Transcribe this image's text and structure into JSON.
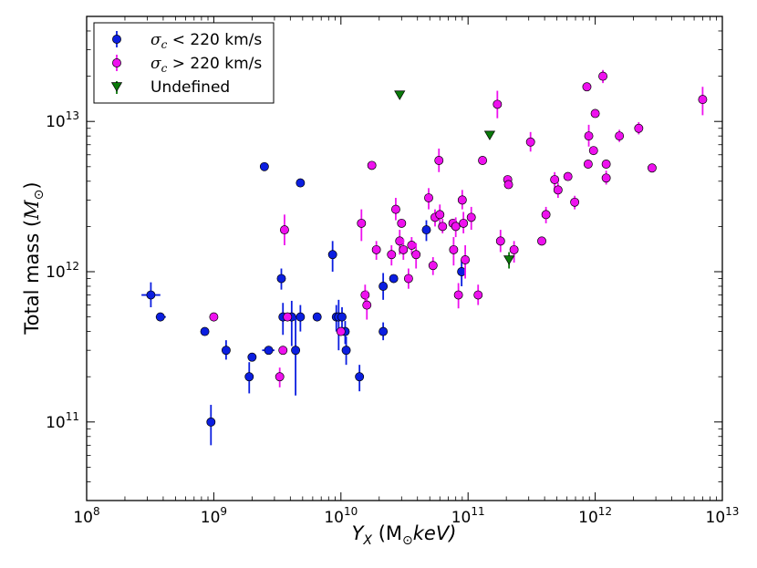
{
  "chart_data": {
    "type": "scatter",
    "title": "",
    "xlabel": {
      "main": "Y",
      "sub": "X",
      "rest": " (M",
      "sun": "⊙",
      "unit": "keV)"
    },
    "ylabel": {
      "main": "Total mass (",
      "sym": "M",
      "sun": "⊙",
      "close": ")"
    },
    "xscale": "log",
    "yscale": "log",
    "xlim": [
      100000000.0,
      10000000000000.0
    ],
    "ylim": [
      30000000000.0,
      50000000000000.0
    ],
    "xticks": [
      {
        "base": "10",
        "exp": "8",
        "value": 100000000.0
      },
      {
        "base": "10",
        "exp": "9",
        "value": 1000000000.0
      },
      {
        "base": "10",
        "exp": "10",
        "value": 10000000000.0
      },
      {
        "base": "10",
        "exp": "11",
        "value": 100000000000.0
      },
      {
        "base": "10",
        "exp": "12",
        "value": 1000000000000.0
      },
      {
        "base": "10",
        "exp": "13",
        "value": 10000000000000.0
      }
    ],
    "yticks": [
      {
        "base": "10",
        "exp": "11",
        "value": 100000000000.0
      },
      {
        "base": "10",
        "exp": "12",
        "value": 1000000000000.0
      },
      {
        "base": "10",
        "exp": "13",
        "value": 10000000000000.0
      }
    ],
    "grid": false,
    "legend_position": "top-left",
    "series": [
      {
        "name": "blue",
        "legend": {
          "sym": "σ",
          "sub": "c",
          "rest": " < 220 km/s"
        },
        "color": "#0b1ee0",
        "marker": "circle",
        "points": [
          {
            "x": 320000000.0,
            "y": 700000000000.0,
            "ylo": 580000000000.0,
            "yhi": 850000000000.0,
            "xlo": 270000000.0,
            "xhi": 380000000.0
          },
          {
            "x": 380000000.0,
            "y": 500000000000.0,
            "xlo": 350000000.0,
            "xhi": 420000000.0
          },
          {
            "x": 850000000.0,
            "y": 400000000000.0
          },
          {
            "x": 950000000.0,
            "y": 100000000000.0,
            "ylo": 70000000000.0,
            "yhi": 130000000000.0
          },
          {
            "x": 1250000000.0,
            "y": 300000000000.0,
            "ylo": 260000000000.0,
            "yhi": 350000000000.0
          },
          {
            "x": 1900000000.0,
            "y": 200000000000.0,
            "ylo": 155000000000.0,
            "yhi": 250000000000.0
          },
          {
            "x": 2000000000.0,
            "y": 270000000000.0
          },
          {
            "x": 2500000000.0,
            "y": 5000000000000.0
          },
          {
            "x": 2700000000.0,
            "y": 300000000000.0,
            "xlo": 2400000000.0,
            "xhi": 3000000000.0
          },
          {
            "x": 3400000000.0,
            "y": 900000000000.0,
            "ylo": 760000000000.0,
            "yhi": 1050000000000.0
          },
          {
            "x": 3500000000.0,
            "y": 500000000000.0,
            "ylo": 380000000000.0,
            "yhi": 620000000000.0
          },
          {
            "x": 4100000000.0,
            "y": 500000000000.0,
            "ylo": 320000000000.0,
            "yhi": 640000000000.0
          },
          {
            "x": 4400000000.0,
            "y": 300000000000.0,
            "ylo": 150000000000.0,
            "yhi": 500000000000.0
          },
          {
            "x": 4800000000.0,
            "y": 3900000000000.0
          },
          {
            "x": 4800000000.0,
            "y": 500000000000.0,
            "ylo": 400000000000.0,
            "yhi": 600000000000.0
          },
          {
            "x": 6500000000.0,
            "y": 500000000000.0
          },
          {
            "x": 8600000000.0,
            "y": 1300000000000.0,
            "ylo": 1000000000000.0,
            "yhi": 1600000000000.0
          },
          {
            "x": 9200000000.0,
            "y": 500000000000.0,
            "ylo": 400000000000.0,
            "yhi": 600000000000.0
          },
          {
            "x": 9600000000.0,
            "y": 500000000000.0,
            "ylo": 300000000000.0,
            "yhi": 650000000000.0
          },
          {
            "x": 10200000000.0,
            "y": 500000000000.0,
            "ylo": 400000000000.0,
            "yhi": 580000000000.0
          },
          {
            "x": 10800000000.0,
            "y": 400000000000.0,
            "ylo": 330000000000.0,
            "yhi": 470000000000.0
          },
          {
            "x": 11000000000.0,
            "y": 300000000000.0,
            "ylo": 240000000000.0,
            "yhi": 370000000000.0
          },
          {
            "x": 14000000000.0,
            "y": 200000000000.0,
            "ylo": 160000000000.0,
            "yhi": 240000000000.0
          },
          {
            "x": 21500000000.0,
            "y": 800000000000.0,
            "ylo": 650000000000.0,
            "yhi": 980000000000.0
          },
          {
            "x": 21500000000.0,
            "y": 400000000000.0,
            "ylo": 350000000000.0,
            "yhi": 460000000000.0
          },
          {
            "x": 26000000000.0,
            "y": 900000000000.0
          },
          {
            "x": 47000000000.0,
            "y": 1900000000000.0,
            "ylo": 1600000000000.0,
            "yhi": 2200000000000.0
          },
          {
            "x": 89000000000.0,
            "y": 1000000000000.0,
            "ylo": 800000000000.0,
            "yhi": 1200000000000.0
          }
        ]
      },
      {
        "name": "magenta",
        "legend": {
          "sym": "σ",
          "sub": "c",
          "rest": " > 220 km/s"
        },
        "color": "#ee11ee",
        "marker": "circle",
        "points": [
          {
            "x": 1000000000.0,
            "y": 500000000000.0
          },
          {
            "x": 3300000000.0,
            "y": 200000000000.0,
            "ylo": 170000000000.0,
            "yhi": 230000000000.0
          },
          {
            "x": 3500000000.0,
            "y": 300000000000.0
          },
          {
            "x": 3600000000.0,
            "y": 1900000000000.0,
            "ylo": 1500000000000.0,
            "yhi": 2400000000000.0
          },
          {
            "x": 3800000000.0,
            "y": 500000000000.0
          },
          {
            "x": 10000000000.0,
            "y": 400000000000.0
          },
          {
            "x": 14500000000.0,
            "y": 2100000000000.0,
            "ylo": 1600000000000.0,
            "yhi": 2600000000000.0
          },
          {
            "x": 15500000000.0,
            "y": 700000000000.0,
            "ylo": 600000000000.0,
            "yhi": 820000000000.0
          },
          {
            "x": 16000000000.0,
            "y": 600000000000.0,
            "ylo": 480000000000.0,
            "yhi": 750000000000.0
          },
          {
            "x": 17500000000.0,
            "y": 5100000000000.0
          },
          {
            "x": 19000000000.0,
            "y": 1400000000000.0,
            "ylo": 1200000000000.0,
            "yhi": 1600000000000.0
          },
          {
            "x": 25000000000.0,
            "y": 1300000000000.0,
            "ylo": 1100000000000.0,
            "yhi": 1500000000000.0
          },
          {
            "x": 27000000000.0,
            "y": 2600000000000.0,
            "ylo": 2200000000000.0,
            "yhi": 3100000000000.0
          },
          {
            "x": 29000000000.0,
            "y": 1600000000000.0,
            "ylo": 1300000000000.0,
            "yhi": 1900000000000.0
          },
          {
            "x": 30000000000.0,
            "y": 2100000000000.0
          },
          {
            "x": 31000000000.0,
            "y": 1400000000000.0,
            "ylo": 1200000000000.0,
            "yhi": 1650000000000.0
          },
          {
            "x": 34000000000.0,
            "y": 900000000000.0,
            "ylo": 770000000000.0,
            "yhi": 1050000000000.0
          },
          {
            "x": 36000000000.0,
            "y": 1500000000000.0,
            "ylo": 1300000000000.0,
            "yhi": 1700000000000.0
          },
          {
            "x": 39000000000.0,
            "y": 1300000000000.0,
            "ylo": 1050000000000.0,
            "yhi": 1550000000000.0
          },
          {
            "x": 49000000000.0,
            "y": 3100000000000.0,
            "ylo": 2600000000000.0,
            "yhi": 3600000000000.0
          },
          {
            "x": 53000000000.0,
            "y": 1100000000000.0,
            "ylo": 950000000000.0,
            "yhi": 1250000000000.0
          },
          {
            "x": 55000000000.0,
            "y": 2300000000000.0,
            "ylo": 2000000000000.0,
            "yhi": 2600000000000.0
          },
          {
            "x": 59000000000.0,
            "y": 5500000000000.0,
            "ylo": 4600000000000.0,
            "yhi": 6600000000000.0
          },
          {
            "x": 60000000000.0,
            "y": 2400000000000.0,
            "ylo": 2000000000000.0,
            "yhi": 2800000000000.0
          },
          {
            "x": 63000000000.0,
            "y": 2000000000000.0,
            "ylo": 1800000000000.0,
            "yhi": 2250000000000.0
          },
          {
            "x": 76000000000.0,
            "y": 2100000000000.0
          },
          {
            "x": 77000000000.0,
            "y": 1400000000000.0,
            "ylo": 1100000000000.0,
            "yhi": 1700000000000.0
          },
          {
            "x": 80000000000.0,
            "y": 2000000000000.0,
            "ylo": 1700000000000.0,
            "yhi": 2300000000000.0
          },
          {
            "x": 84000000000.0,
            "y": 700000000000.0,
            "ylo": 570000000000.0,
            "yhi": 840000000000.0
          },
          {
            "x": 90000000000.0,
            "y": 3000000000000.0,
            "ylo": 2600000000000.0,
            "yhi": 3500000000000.0
          },
          {
            "x": 92000000000.0,
            "y": 2100000000000.0,
            "ylo": 1800000000000.0,
            "yhi": 2500000000000.0
          },
          {
            "x": 95000000000.0,
            "y": 1200000000000.0,
            "ylo": 900000000000.0,
            "yhi": 1500000000000.0
          },
          {
            "x": 106000000000.0,
            "y": 2300000000000.0,
            "ylo": 1900000000000.0,
            "yhi": 2700000000000.0
          },
          {
            "x": 120000000000.0,
            "y": 700000000000.0,
            "ylo": 600000000000.0,
            "yhi": 820000000000.0
          },
          {
            "x": 130000000000.0,
            "y": 5500000000000.0
          },
          {
            "x": 170000000000.0,
            "y": 13000000000000.0,
            "ylo": 10500000000000.0,
            "yhi": 16000000000000.0
          },
          {
            "x": 180000000000.0,
            "y": 1600000000000.0,
            "ylo": 1350000000000.0,
            "yhi": 1900000000000.0
          },
          {
            "x": 205000000000.0,
            "y": 4100000000000.0
          },
          {
            "x": 208000000000.0,
            "y": 3800000000000.0
          },
          {
            "x": 230000000000.0,
            "y": 1400000000000.0,
            "ylo": 1150000000000.0,
            "yhi": 1600000000000.0
          },
          {
            "x": 310000000000.0,
            "y": 7300000000000.0,
            "ylo": 6300000000000.0,
            "yhi": 8500000000000.0
          },
          {
            "x": 380000000000.0,
            "y": 1600000000000.0
          },
          {
            "x": 410000000000.0,
            "y": 2400000000000.0,
            "ylo": 2100000000000.0,
            "yhi": 2700000000000.0
          },
          {
            "x": 480000000000.0,
            "y": 4100000000000.0,
            "ylo": 3600000000000.0,
            "yhi": 4600000000000.0
          },
          {
            "x": 510000000000.0,
            "y": 3500000000000.0,
            "ylo": 3100000000000.0,
            "yhi": 3900000000000.0
          },
          {
            "x": 610000000000.0,
            "y": 4300000000000.0
          },
          {
            "x": 690000000000.0,
            "y": 2900000000000.0,
            "ylo": 2600000000000.0,
            "yhi": 3200000000000.0
          },
          {
            "x": 860000000000.0,
            "y": 17000000000000.0
          },
          {
            "x": 890000000000.0,
            "y": 8000000000000.0,
            "ylo": 6800000000000.0,
            "yhi": 9500000000000.0
          },
          {
            "x": 880000000000.0,
            "y": 5200000000000.0
          },
          {
            "x": 970000000000.0,
            "y": 6400000000000.0
          },
          {
            "x": 1000000000000.0,
            "y": 11300000000000.0
          },
          {
            "x": 1150000000000.0,
            "y": 20000000000000.0,
            "ylo": 18000000000000.0,
            "yhi": 22000000000000.0
          },
          {
            "x": 1220000000000.0,
            "y": 5200000000000.0
          },
          {
            "x": 1220000000000.0,
            "y": 4200000000000.0,
            "ylo": 3800000000000.0,
            "yhi": 4700000000000.0
          },
          {
            "x": 1550000000000.0,
            "y": 8000000000000.0,
            "ylo": 7300000000000.0,
            "yhi": 8800000000000.0
          },
          {
            "x": 2200000000000.0,
            "y": 9000000000000.0,
            "ylo": 8200000000000.0,
            "yhi": 9900000000000.0
          },
          {
            "x": 2800000000000.0,
            "y": 4900000000000.0
          },
          {
            "x": 7000000000000.0,
            "y": 14000000000000.0,
            "ylo": 11000000000000.0,
            "yhi": 17000000000000.0
          }
        ]
      },
      {
        "name": "green",
        "legend": {
          "sym": "",
          "sub": "",
          "rest": "Undefined"
        },
        "color": "#0a7a0a",
        "marker": "triangle-down",
        "points": [
          {
            "x": 29000000000.0,
            "y": 15000000000000.0
          },
          {
            "x": 148000000000.0,
            "y": 8100000000000.0
          },
          {
            "x": 210000000000.0,
            "y": 1200000000000.0,
            "ylo": 1050000000000.0,
            "yhi": 1350000000000.0
          }
        ]
      }
    ]
  }
}
